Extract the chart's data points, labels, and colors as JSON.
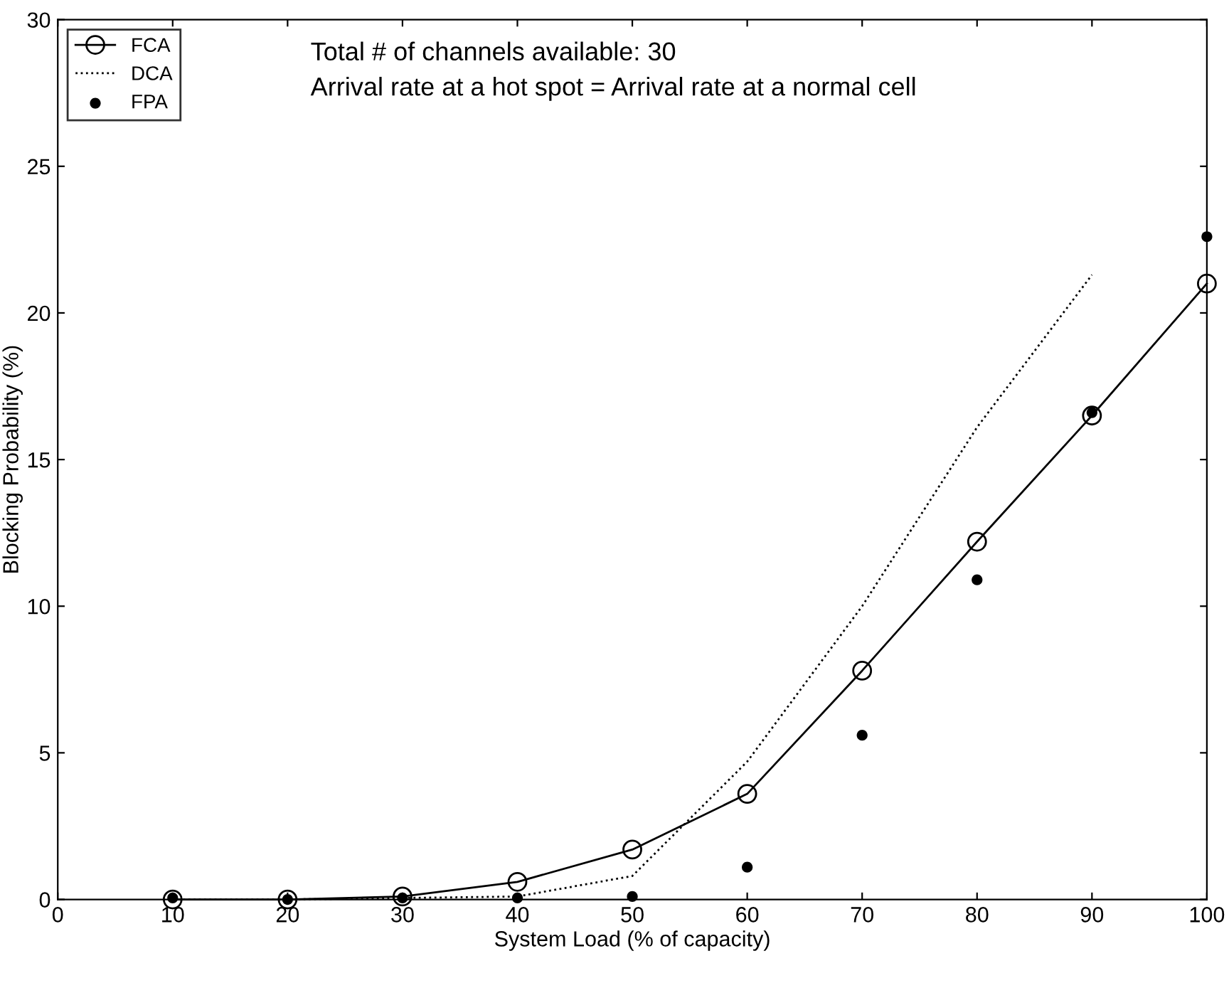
{
  "chart_data": {
    "type": "line",
    "xlabel": "System Load (% of capacity)",
    "ylabel": "Blocking Probability (%)",
    "x": [
      10,
      20,
      30,
      40,
      50,
      60,
      70,
      80,
      90,
      100
    ],
    "series": [
      {
        "name": "FCA",
        "color": "#000000",
        "marker": "circle",
        "line_style": "solid",
        "values": [
          0,
          0,
          0.1,
          0.6,
          1.7,
          3.6,
          7.8,
          12.2,
          16.5,
          21.0
        ]
      },
      {
        "name": "DCA",
        "color": "#000000",
        "marker": "none",
        "line_style": "dotted",
        "values": [
          0,
          0,
          0.05,
          0.1,
          0.8,
          4.7,
          10.0,
          16.1,
          21.3,
          null
        ]
      },
      {
        "name": "FPA",
        "type": "scatter",
        "color": "#000000",
        "marker": "circle",
        "values": [
          0.05,
          0,
          0.05,
          0.05,
          0.1,
          1.1,
          5.6,
          10.9,
          16.6,
          22.6
        ]
      }
    ],
    "annotations": [
      "Total # of channels available: 30",
      "Arrival rate at a hot spot = Arrival rate at a normal cell"
    ],
    "xlim": [
      0,
      100
    ],
    "ylim": [
      0,
      30
    ],
    "xticks": [
      0,
      10,
      20,
      30,
      40,
      50,
      60,
      70,
      80,
      90,
      100
    ],
    "yticks": [
      0,
      5,
      10,
      15,
      20,
      25,
      30
    ],
    "grid": false,
    "legend": "top left"
  }
}
